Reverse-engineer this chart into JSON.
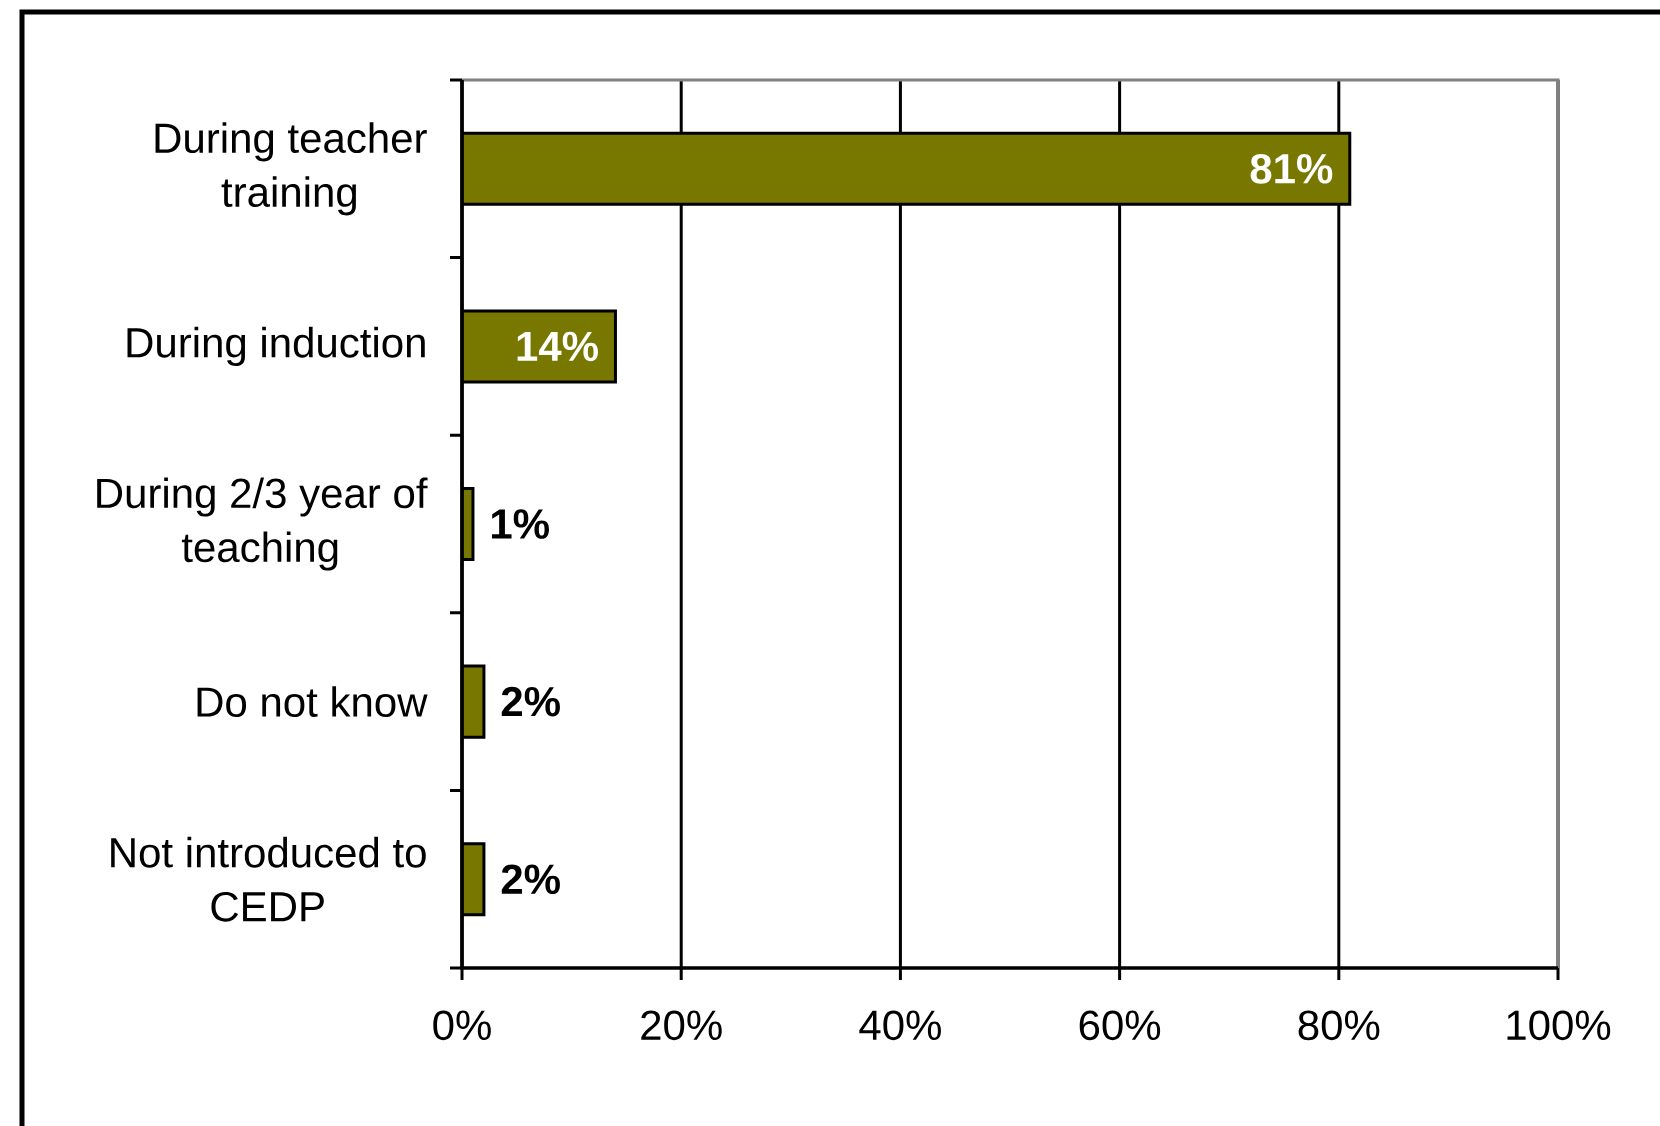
{
  "chart_data": {
    "type": "bar",
    "orientation": "horizontal",
    "categories": [
      "During teacher training",
      "During induction",
      "During 2/3 year of teaching",
      "Do not know",
      "Not introduced to CEDP"
    ],
    "values": [
      81,
      14,
      1,
      2,
      2
    ],
    "color": "#787800",
    "value_labels": [
      "81%",
      "14%",
      "1%",
      "2%",
      "2%"
    ],
    "xlim": [
      0,
      100
    ],
    "xticks": [
      {
        "value": 0,
        "label": "0%"
      },
      {
        "value": 20,
        "label": "20%"
      },
      {
        "value": 40,
        "label": "40%"
      },
      {
        "value": 60,
        "label": "60%"
      },
      {
        "value": 80,
        "label": "80%"
      },
      {
        "value": 100,
        "label": "100%"
      }
    ],
    "grid": "x"
  }
}
